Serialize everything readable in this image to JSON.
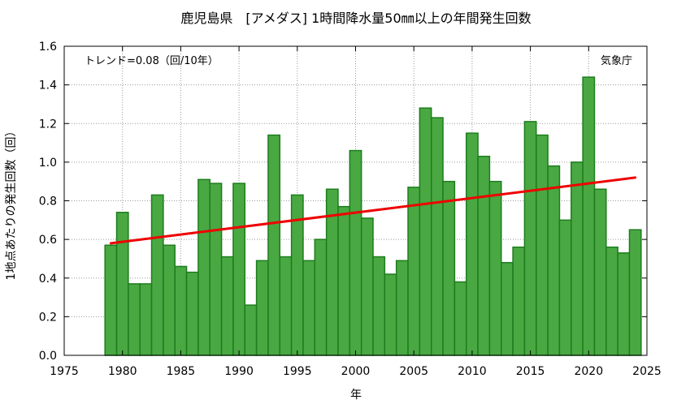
{
  "chart_data": {
    "type": "bar",
    "title": "鹿児島県　[アメダス] 1時間降水量50㎜以上の年間発生回数",
    "xlabel": "年",
    "ylabel": "1地点あたりの発生回数（回）",
    "xlim": [
      1975,
      2025
    ],
    "ylim": [
      0,
      1.6
    ],
    "x_ticks": [
      "1975",
      "1980",
      "1985",
      "1990",
      "1995",
      "2000",
      "2005",
      "2010",
      "2015",
      "2020",
      "2025"
    ],
    "y_ticks": [
      "0.0",
      "0.2",
      "0.4",
      "0.6",
      "0.8",
      "1.0",
      "1.2",
      "1.4",
      "1.6"
    ],
    "grid": true,
    "bar_color": "#49a842",
    "bar_edge_color": "#1d7d1d",
    "trend_color": "#ee0000",
    "trend_text": "トレンド=0.08（回/10年）",
    "source_text": "気象庁",
    "trend_line": {
      "x": [
        1979,
        2024
      ],
      "y": [
        0.58,
        0.92
      ]
    },
    "x": [
      1979,
      1980,
      1981,
      1982,
      1983,
      1984,
      1985,
      1986,
      1987,
      1988,
      1989,
      1990,
      1991,
      1992,
      1993,
      1994,
      1995,
      1996,
      1997,
      1998,
      1999,
      2000,
      2001,
      2002,
      2003,
      2004,
      2005,
      2006,
      2007,
      2008,
      2009,
      2010,
      2011,
      2012,
      2013,
      2014,
      2015,
      2016,
      2017,
      2018,
      2019,
      2020,
      2021,
      2022,
      2023,
      2024
    ],
    "values": [
      0.57,
      0.74,
      0.37,
      0.37,
      0.83,
      0.57,
      0.46,
      0.43,
      0.91,
      0.89,
      0.51,
      0.89,
      0.26,
      0.49,
      1.14,
      0.51,
      0.83,
      0.49,
      0.6,
      0.86,
      0.77,
      1.06,
      0.71,
      0.51,
      0.42,
      0.49,
      0.87,
      1.28,
      1.23,
      0.9,
      0.38,
      1.15,
      1.03,
      0.9,
      0.48,
      0.56,
      1.21,
      1.14,
      0.98,
      0.7,
      1.0,
      1.44,
      0.86,
      0.56,
      0.53,
      0.65
    ]
  }
}
